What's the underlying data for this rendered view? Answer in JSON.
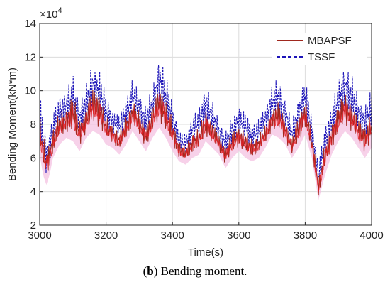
{
  "chart_data": {
    "type": "line",
    "xlabel": "Time(s)",
    "ylabel": "Bending Moment(kN*m)",
    "exponent_label": "×10",
    "exponent_power": "4",
    "xlim": [
      3000,
      4000
    ],
    "ylim": [
      2,
      14
    ],
    "x_ticks": [
      3000,
      3200,
      3400,
      3600,
      3800,
      4000
    ],
    "y_ticks": [
      2,
      4,
      6,
      8,
      10,
      12,
      14
    ],
    "grid": true,
    "legend_position": "top-right",
    "series": [
      {
        "name": "MBAPSF",
        "color": "#a0281e",
        "style": "solid",
        "envelope": [
          [
            3000,
            8.6,
            6.2
          ],
          [
            3010,
            7.6,
            5.0
          ],
          [
            3020,
            6.6,
            4.4
          ],
          [
            3030,
            7.0,
            5.0
          ],
          [
            3040,
            7.8,
            6.0
          ],
          [
            3060,
            8.8,
            6.8
          ],
          [
            3080,
            9.0,
            7.2
          ],
          [
            3100,
            9.9,
            7.0
          ],
          [
            3120,
            8.4,
            6.4
          ],
          [
            3140,
            9.0,
            7.2
          ],
          [
            3160,
            10.3,
            7.6
          ],
          [
            3180,
            10.0,
            7.4
          ],
          [
            3200,
            8.6,
            6.8
          ],
          [
            3220,
            8.0,
            6.6
          ],
          [
            3240,
            7.6,
            6.2
          ],
          [
            3260,
            8.6,
            6.8
          ],
          [
            3280,
            9.5,
            7.6
          ],
          [
            3300,
            8.8,
            7.0
          ],
          [
            3320,
            8.0,
            6.4
          ],
          [
            3340,
            9.0,
            7.2
          ],
          [
            3360,
            10.5,
            7.8
          ],
          [
            3380,
            9.6,
            7.2
          ],
          [
            3400,
            8.4,
            6.4
          ],
          [
            3420,
            7.0,
            5.8
          ],
          [
            3440,
            6.8,
            5.6
          ],
          [
            3460,
            7.6,
            6.0
          ],
          [
            3480,
            7.8,
            6.2
          ],
          [
            3500,
            9.0,
            7.0
          ],
          [
            3520,
            8.2,
            6.6
          ],
          [
            3540,
            7.4,
            6.2
          ],
          [
            3560,
            6.8,
            5.4
          ],
          [
            3580,
            7.6,
            6.0
          ],
          [
            3600,
            8.0,
            6.4
          ],
          [
            3620,
            7.6,
            6.0
          ],
          [
            3640,
            7.2,
            5.8
          ],
          [
            3660,
            7.4,
            6.0
          ],
          [
            3680,
            8.0,
            6.6
          ],
          [
            3700,
            9.0,
            7.4
          ],
          [
            3720,
            9.4,
            7.2
          ],
          [
            3740,
            8.4,
            6.8
          ],
          [
            3760,
            7.2,
            6.0
          ],
          [
            3780,
            8.6,
            6.6
          ],
          [
            3800,
            9.6,
            7.4
          ],
          [
            3820,
            7.6,
            6.0
          ],
          [
            3840,
            4.8,
            3.5
          ],
          [
            3860,
            7.0,
            5.0
          ],
          [
            3880,
            8.2,
            6.2
          ],
          [
            3900,
            9.2,
            7.0
          ],
          [
            3920,
            10.0,
            7.6
          ],
          [
            3940,
            9.4,
            7.2
          ],
          [
            3960,
            8.4,
            6.6
          ],
          [
            3980,
            8.0,
            6.0
          ],
          [
            4000,
            8.8,
            6.6
          ]
        ]
      },
      {
        "name": "TSSF",
        "color": "#1c14b8",
        "style": "dashed",
        "envelope": [
          [
            3000,
            10.0,
            6.8
          ],
          [
            3010,
            8.6,
            5.4
          ],
          [
            3020,
            7.2,
            4.6
          ],
          [
            3030,
            7.8,
            5.4
          ],
          [
            3040,
            8.8,
            6.4
          ],
          [
            3060,
            9.8,
            7.4
          ],
          [
            3080,
            10.2,
            7.8
          ],
          [
            3100,
            11.0,
            7.6
          ],
          [
            3120,
            9.4,
            7.0
          ],
          [
            3140,
            10.4,
            7.8
          ],
          [
            3160,
            11.8,
            8.4
          ],
          [
            3180,
            11.4,
            8.0
          ],
          [
            3200,
            9.8,
            7.4
          ],
          [
            3220,
            9.0,
            7.2
          ],
          [
            3240,
            8.6,
            6.8
          ],
          [
            3260,
            9.8,
            7.4
          ],
          [
            3280,
            10.8,
            8.2
          ],
          [
            3300,
            10.0,
            7.6
          ],
          [
            3320,
            9.2,
            7.0
          ],
          [
            3340,
            10.2,
            7.8
          ],
          [
            3360,
            12.3,
            8.6
          ],
          [
            3380,
            11.0,
            7.8
          ],
          [
            3400,
            9.6,
            7.0
          ],
          [
            3420,
            7.6,
            6.0
          ],
          [
            3440,
            7.6,
            6.0
          ],
          [
            3460,
            8.6,
            6.6
          ],
          [
            3480,
            9.0,
            6.8
          ],
          [
            3500,
            10.6,
            7.6
          ],
          [
            3520,
            9.4,
            7.2
          ],
          [
            3540,
            8.4,
            6.6
          ],
          [
            3560,
            7.6,
            5.8
          ],
          [
            3580,
            8.6,
            6.4
          ],
          [
            3600,
            9.2,
            7.0
          ],
          [
            3620,
            8.8,
            6.6
          ],
          [
            3640,
            8.2,
            6.2
          ],
          [
            3660,
            8.4,
            6.4
          ],
          [
            3680,
            9.2,
            7.2
          ],
          [
            3700,
            10.4,
            8.0
          ],
          [
            3720,
            10.8,
            7.8
          ],
          [
            3740,
            9.6,
            7.4
          ],
          [
            3760,
            8.2,
            6.4
          ],
          [
            3780,
            9.8,
            7.2
          ],
          [
            3800,
            10.8,
            8.0
          ],
          [
            3820,
            8.6,
            6.4
          ],
          [
            3840,
            5.8,
            3.8
          ],
          [
            3860,
            8.0,
            5.4
          ],
          [
            3880,
            9.4,
            6.8
          ],
          [
            3900,
            10.6,
            7.6
          ],
          [
            3920,
            11.8,
            8.2
          ],
          [
            3940,
            11.0,
            7.8
          ],
          [
            3960,
            9.8,
            7.2
          ],
          [
            3980,
            9.2,
            6.6
          ],
          [
            4000,
            10.2,
            7.2
          ]
        ]
      }
    ]
  },
  "caption": {
    "bold_part": "b",
    "prefix": "(",
    "suffix": ") Bending moment."
  }
}
